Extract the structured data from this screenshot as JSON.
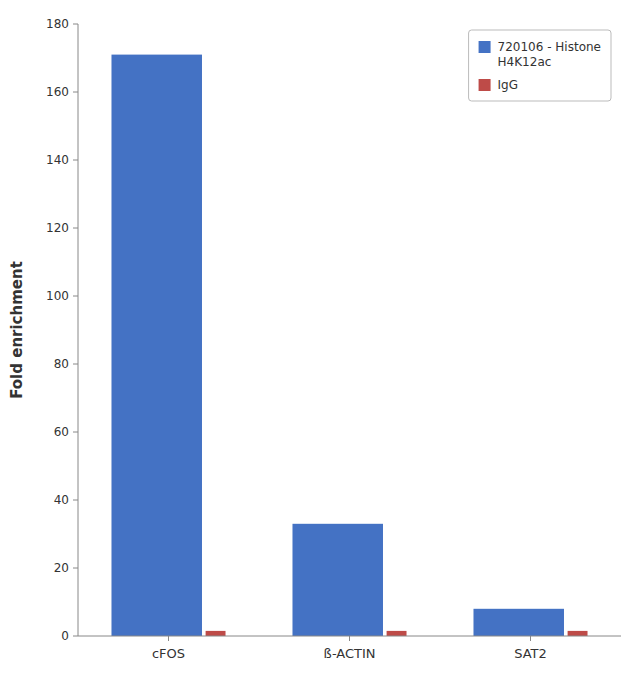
{
  "chart_data": {
    "type": "bar",
    "categories": [
      "cFOS",
      "ß-ACTIN",
      "SAT2"
    ],
    "series": [
      {
        "name": "720106 - Histone\nH4K12ac",
        "color": "#4472C4",
        "values": [
          171,
          33,
          8
        ]
      },
      {
        "name": "IgG",
        "color": "#BE4B48",
        "values": [
          1.5,
          1.5,
          1.5
        ]
      }
    ],
    "ylabel": "Fold enrichment",
    "ylim": [
      0,
      180
    ],
    "yticks": [
      0,
      20,
      40,
      60,
      80,
      100,
      120,
      140,
      160,
      180
    ],
    "grid": false,
    "legend": "upper right"
  }
}
